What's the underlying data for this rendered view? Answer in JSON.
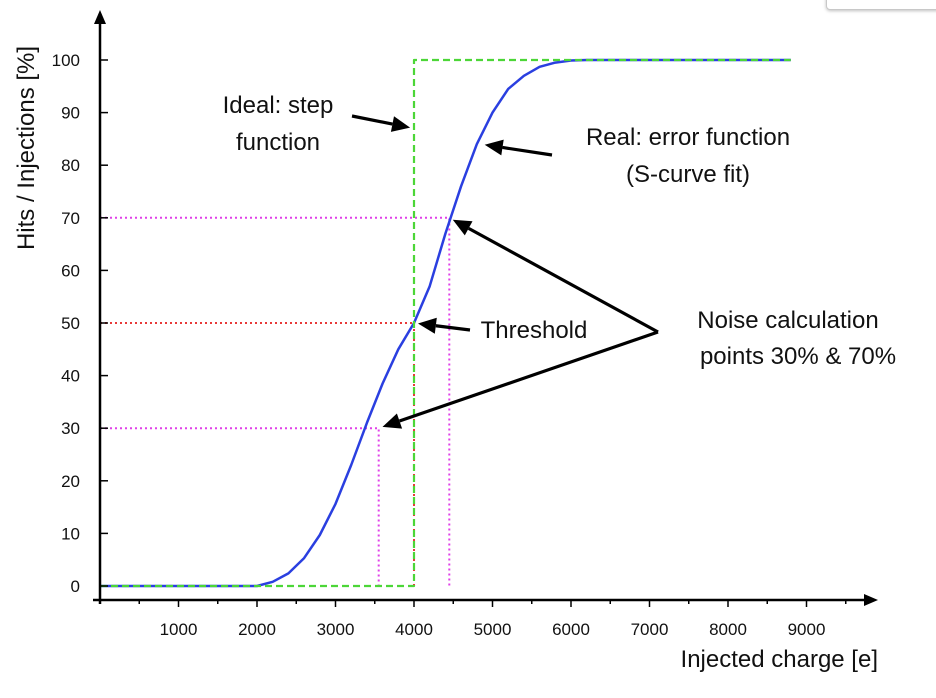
{
  "chart_data": {
    "type": "line",
    "xlabel": "Injected charge [e]",
    "ylabel": "Hits / Injections [%]",
    "xlim": [
      0,
      10000
    ],
    "ylim": [
      0,
      100
    ],
    "x_ticks": [
      1000,
      2000,
      3000,
      4000,
      5000,
      6000,
      7000,
      8000,
      9000
    ],
    "y_ticks": [
      0,
      10,
      20,
      30,
      40,
      50,
      60,
      70,
      80,
      90,
      100
    ],
    "grid": false,
    "series": [
      {
        "color": "#2a3fe0",
        "style": "solid",
        "x": [
          0,
          1000,
          2000,
          2200,
          2400,
          2600,
          2800,
          3000,
          3200,
          3400,
          3600,
          3800,
          4000,
          4200,
          4400,
          4600,
          4800,
          5000,
          5200,
          5400,
          5600,
          5800,
          6000,
          6200,
          7000,
          8000,
          8800
        ],
        "y": [
          0,
          0,
          0,
          0.8,
          2.4,
          5.3,
          9.7,
          15.6,
          23,
          31,
          38.5,
          45,
          50,
          57,
          67,
          76,
          84,
          90,
          94.5,
          97,
          98.7,
          99.5,
          99.9,
          100,
          100,
          100,
          100
        ]
      },
      {
        "color": "#4cd637",
        "style": "dashed",
        "x": [
          0,
          4000,
          4000,
          8800
        ],
        "y": [
          0,
          0,
          100,
          100
        ]
      }
    ],
    "reference_lines": [
      {
        "color": "#e040e8",
        "style": "dotted",
        "x": [
          0,
          4450,
          4450
        ],
        "y": [
          70,
          70,
          0
        ]
      },
      {
        "color": "#e040e8",
        "style": "dotted",
        "x": [
          0,
          3550,
          3550
        ],
        "y": [
          30,
          30,
          0
        ]
      },
      {
        "color": "#e83838",
        "style": "dotted",
        "x": [
          0,
          4000,
          4000
        ],
        "y": [
          50,
          50,
          0
        ]
      }
    ],
    "annotations": [
      {
        "lines": [
          "Ideal: step",
          "function"
        ],
        "target": {
          "x": 4000,
          "y": 87
        }
      },
      {
        "lines": [
          "Real: error function",
          "(S-curve fit)"
        ],
        "target": {
          "x": 4850,
          "y": 84
        }
      },
      {
        "lines": [
          "Threshold"
        ],
        "target": {
          "x": 4000,
          "y": 50
        }
      },
      {
        "lines": [
          "Noise calculation",
          "points 30% & 70%"
        ],
        "targets": [
          {
            "x": 4450,
            "y": 70
          },
          {
            "x": 3550,
            "y": 30
          }
        ]
      }
    ]
  }
}
